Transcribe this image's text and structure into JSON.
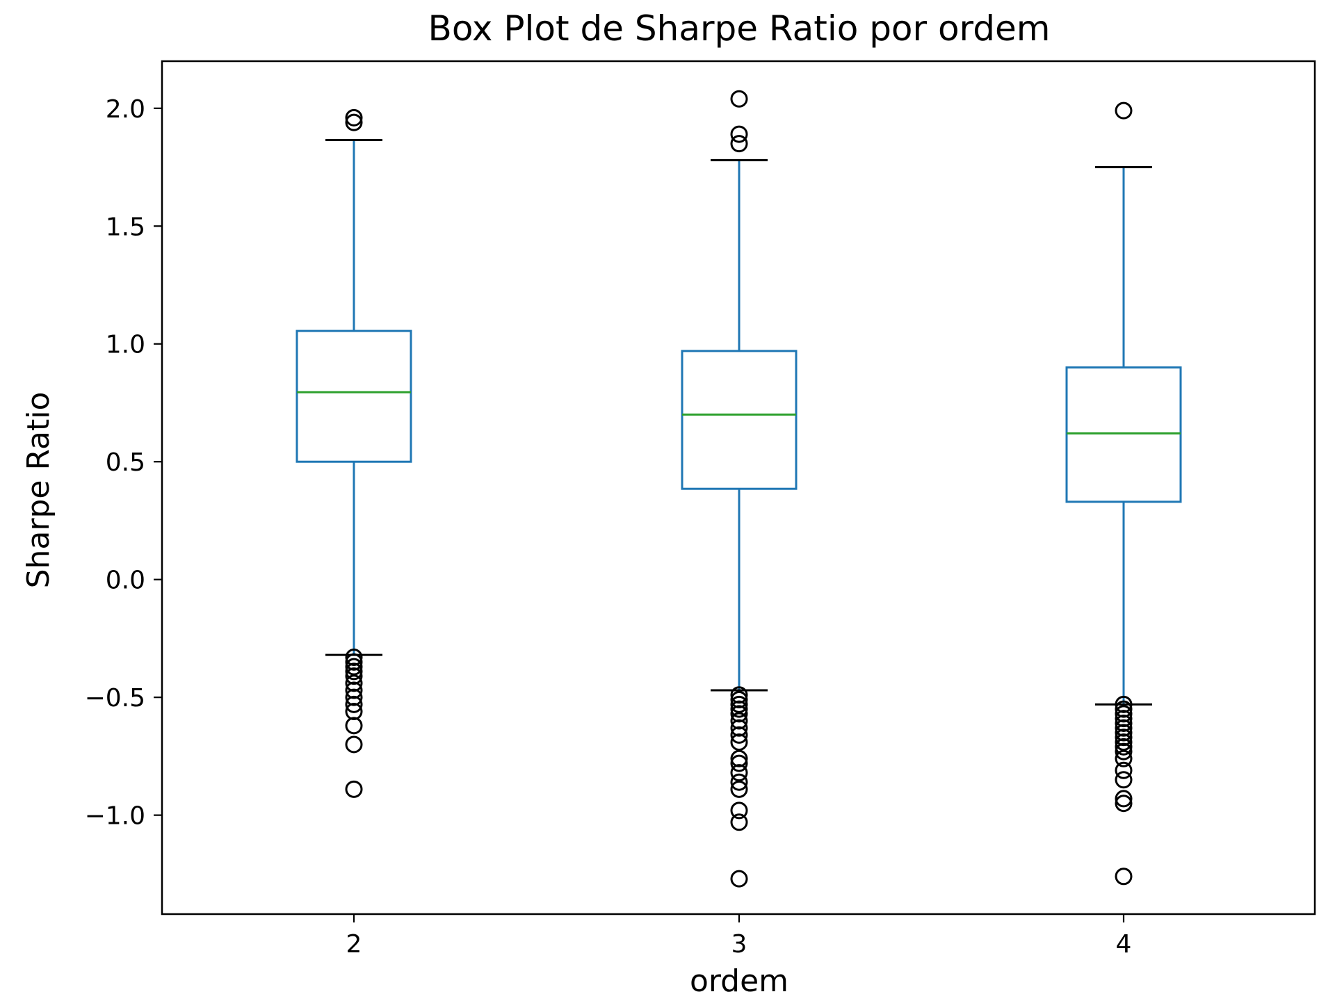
{
  "chart_data": {
    "type": "box",
    "title": "Box Plot de Sharpe Ratio por ordem",
    "xlabel": "ordem",
    "ylabel": "Sharpe Ratio",
    "ylim": [
      -1.42,
      2.2
    ],
    "yticks": [
      2.0,
      1.5,
      1.0,
      0.5,
      0.0,
      -0.5,
      -1.0
    ],
    "ytick_labels": [
      "2.0",
      "1.5",
      "1.0",
      "0.5",
      "0.0",
      "−0.5",
      "−1.0"
    ],
    "categories": [
      "2",
      "3",
      "4"
    ],
    "boxes": [
      {
        "category": "2",
        "whisker_low": -0.32,
        "q1": 0.5,
        "median": 0.795,
        "q3": 1.055,
        "whisker_high": 1.865,
        "outliers": [
          1.96,
          1.94,
          -0.33,
          -0.35,
          -0.37,
          -0.39,
          -0.41,
          -0.44,
          -0.47,
          -0.5,
          -0.53,
          -0.56,
          -0.62,
          -0.7,
          -0.89
        ]
      },
      {
        "category": "3",
        "whisker_low": -0.47,
        "q1": 0.385,
        "median": 0.7,
        "q3": 0.97,
        "whisker_high": 1.78,
        "outliers": [
          2.04,
          1.89,
          1.85,
          -0.49,
          -0.51,
          -0.53,
          -0.55,
          -0.57,
          -0.6,
          -0.63,
          -0.66,
          -0.69,
          -0.76,
          -0.78,
          -0.82,
          -0.86,
          -0.89,
          -0.98,
          -1.03,
          -1.27
        ]
      },
      {
        "category": "4",
        "whisker_low": -0.53,
        "q1": 0.33,
        "median": 0.62,
        "q3": 0.9,
        "whisker_high": 1.75,
        "outliers": [
          1.99,
          -0.53,
          -0.55,
          -0.57,
          -0.59,
          -0.61,
          -0.63,
          -0.65,
          -0.67,
          -0.69,
          -0.71,
          -0.73,
          -0.76,
          -0.81,
          -0.85,
          -0.93,
          -0.95,
          -1.26
        ]
      }
    ],
    "colors": {
      "box": "#1f77b4",
      "median": "#2ca02c",
      "cap": "#000000",
      "flier": "#000000",
      "axes": "#000000"
    },
    "grid": false
  }
}
